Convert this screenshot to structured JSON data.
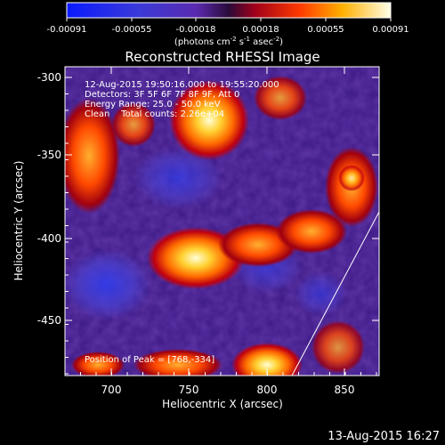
{
  "colorbar": {
    "ticks": [
      "-0.00091",
      "-0.00055",
      "-0.00018",
      "0.00018",
      "0.00055",
      "0.00091"
    ],
    "units_prefix": "(photons cm",
    "units_exp1": "-2",
    "units_mid1": " s",
    "units_exp2": "-1",
    "units_mid2": " asec",
    "units_exp3": "-2",
    "units_suffix": ")"
  },
  "plot": {
    "title": "Reconstructed RHESSI Image",
    "time_range": "12-Aug-2015 19:50:16.000 to 19:55:20.000",
    "detectors": "Detectors: 3F 5F 6F 7F 8F 9F, Att 0",
    "energy_range": "Energy Range: 25.0 - 50.0 keV",
    "clean_line": "Clean    Total counts: 2.26e+04",
    "position_of_peak": "Position of Peak = [768,-334]",
    "xlabel": "Heliocentric X (arcsec)",
    "ylabel": "Heliocentric Y (arcsec)",
    "x_ticks": [
      "700",
      "750",
      "800",
      "850"
    ],
    "y_ticks": [
      "-300",
      "-350",
      "-400",
      "-450"
    ],
    "timestamp": "13-Aug-2015 16:27"
  },
  "colors": {
    "background": "#000000",
    "neg_min": "#1a1aff",
    "neg_mid": "#5a3ab8",
    "zero": "#3a1a80",
    "pos_low": "#b8101a",
    "pos_mid": "#ff7a10",
    "pos_high": "#ffffe0",
    "limb": "#ffffff"
  }
}
